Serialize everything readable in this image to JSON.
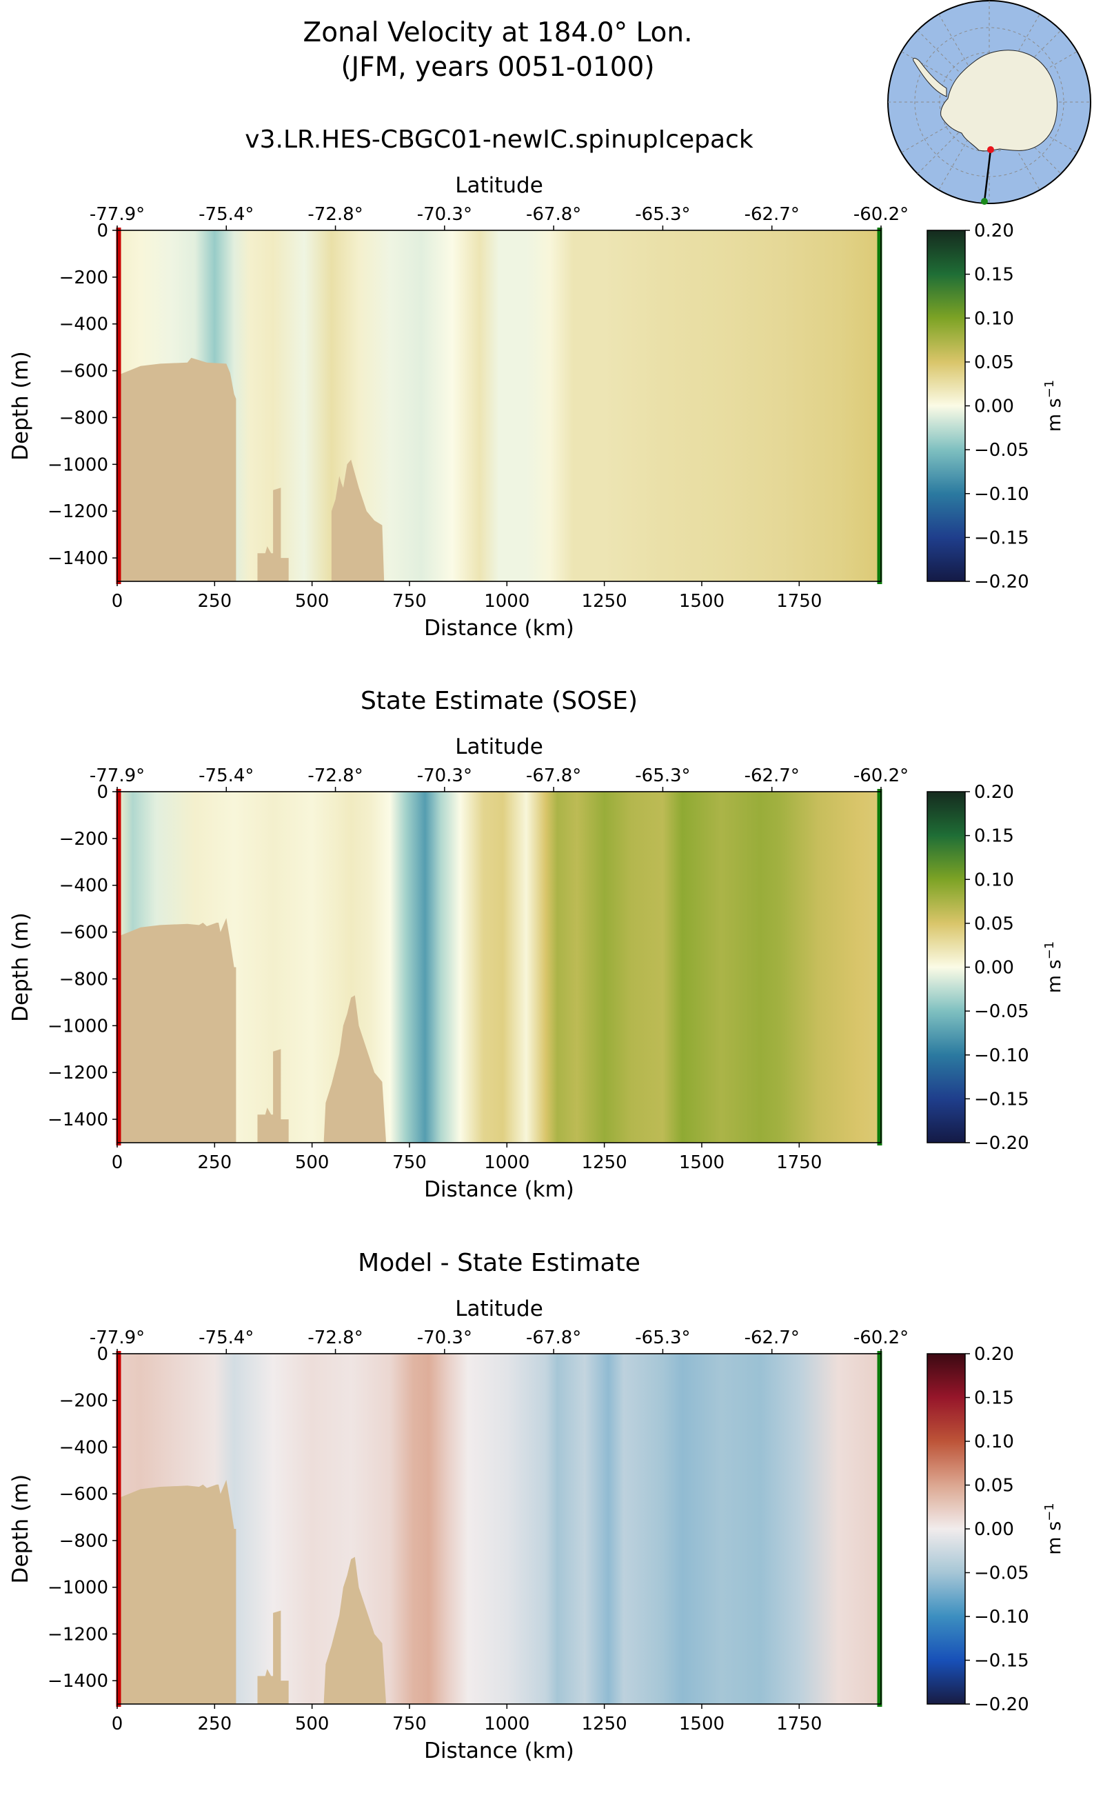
{
  "figure": {
    "title_line1": "Zonal Velocity at 184.0° Lon.",
    "title_line2": "(JFM, years 0051-0100)"
  },
  "inset_map": {
    "description_icon": "antarctica-polar-map-icon",
    "colors": {
      "ocean": "#9cbce6",
      "land": "#f0eedc",
      "section_line": "#000000",
      "start_marker": "#e8141c",
      "end_marker": "#1a8a1a"
    }
  },
  "axes_common": {
    "xlabel": "Distance (km)",
    "ylabel": "Depth (m)",
    "top_xlabel": "Latitude",
    "xlim": [
      0,
      1960
    ],
    "ylim": [
      -1500,
      0
    ],
    "x_ticks": [
      "0",
      "250",
      "500",
      "750",
      "1000",
      "1250",
      "1500",
      "1750"
    ],
    "y_ticks": [
      "0",
      "−200",
      "−400",
      "−600",
      "−800",
      "−1000",
      "−1200",
      "−1400"
    ],
    "lat_ticks": [
      "-77.9°",
      "-75.4°",
      "-72.8°",
      "-70.3°",
      "-67.8°",
      "-65.3°",
      "-62.7°",
      "-60.2°"
    ],
    "colorbar_label": "m s",
    "colorbar_label_sup": "−1",
    "colorbar_ticks": [
      "0.20",
      "0.15",
      "0.10",
      "0.05",
      "0.00",
      "−0.05",
      "−0.10",
      "−0.15",
      "−0.20"
    ],
    "bathymetry_color": "#d4bb93",
    "start_edge_color": "#cc0000",
    "end_edge_color": "#0b7a0b"
  },
  "chart_data": [
    {
      "type": "heatmap",
      "title": "v3.LR.HES-CBGC01-newIC.spinupIcepack",
      "xlabel": "Distance (km)",
      "ylabel": "Depth (m)",
      "xlim": [
        0,
        1960
      ],
      "ylim": [
        -1500,
        0
      ],
      "colorbar": {
        "label": "m s^-1",
        "range": [
          -0.2,
          0.2
        ],
        "colormap": "tarn-like"
      },
      "column_x_km": [
        0,
        60,
        140,
        200,
        250,
        300,
        340,
        400,
        480,
        550,
        620,
        700,
        780,
        860,
        930,
        980,
        1050,
        1110,
        1170,
        1250,
        1400,
        1550,
        1700,
        1850,
        1960
      ],
      "column_values": [
        0.01,
        0.005,
        -0.005,
        -0.01,
        -0.04,
        -0.01,
        0.01,
        0.015,
        -0.005,
        0.025,
        0.01,
        -0.005,
        -0.01,
        0.0,
        0.02,
        -0.005,
        -0.005,
        0.005,
        0.02,
        0.02,
        0.025,
        0.028,
        0.032,
        0.038,
        0.045
      ]
    },
    {
      "type": "heatmap",
      "title": "State Estimate (SOSE)",
      "xlabel": "Distance (km)",
      "ylabel": "Depth (m)",
      "xlim": [
        0,
        1960
      ],
      "ylim": [
        -1500,
        0
      ],
      "colorbar": {
        "label": "m s^-1",
        "range": [
          -0.2,
          0.2
        ],
        "colormap": "tarn-like"
      },
      "column_x_km": [
        0,
        40,
        100,
        200,
        300,
        400,
        500,
        600,
        650,
        700,
        740,
        790,
        830,
        880,
        940,
        990,
        1050,
        1100,
        1130,
        1180,
        1250,
        1320,
        1400,
        1450,
        1550,
        1650,
        1700,
        1800,
        1900,
        1960
      ],
      "column_values": [
        0.01,
        -0.03,
        -0.01,
        0.01,
        0.005,
        0.01,
        0.005,
        0.015,
        0.01,
        0.0,
        -0.035,
        -0.075,
        -0.03,
        0.0,
        0.035,
        0.04,
        0.005,
        0.05,
        0.075,
        0.065,
        0.085,
        0.07,
        0.065,
        0.09,
        0.075,
        0.085,
        0.08,
        0.06,
        0.05,
        0.045
      ]
    },
    {
      "type": "heatmap",
      "title": "Model - State Estimate",
      "xlabel": "Distance (km)",
      "ylabel": "Depth (m)",
      "xlim": [
        0,
        1960
      ],
      "ylim": [
        -1500,
        0
      ],
      "colorbar": {
        "label": "m s^-1",
        "range": [
          -0.2,
          0.2
        ],
        "colormap": "balance"
      },
      "column_x_km": [
        0,
        60,
        150,
        250,
        300,
        400,
        500,
        600,
        700,
        760,
        800,
        850,
        900,
        1000,
        1100,
        1130,
        1200,
        1260,
        1300,
        1400,
        1450,
        1550,
        1650,
        1750,
        1850,
        1960
      ],
      "column_values": [
        0.02,
        0.025,
        0.015,
        0.005,
        -0.02,
        0.0,
        0.01,
        0.005,
        0.015,
        0.04,
        0.045,
        0.02,
        0.0,
        -0.01,
        -0.03,
        -0.05,
        -0.03,
        -0.06,
        -0.035,
        -0.05,
        -0.06,
        -0.05,
        -0.055,
        -0.035,
        0.01,
        0.02
      ]
    }
  ],
  "bathymetry_km_depth": [
    [
      [
        0,
        -1500
      ],
      [
        0,
        -620
      ],
      [
        30,
        -600
      ],
      [
        60,
        -580
      ],
      [
        110,
        -570
      ],
      [
        180,
        -565
      ],
      [
        190,
        -545
      ],
      [
        210,
        -555
      ],
      [
        230,
        -565
      ],
      [
        280,
        -570
      ],
      [
        290,
        -610
      ],
      [
        300,
        -700
      ],
      [
        305,
        -720
      ],
      [
        305,
        -1500
      ]
    ],
    [
      [
        360,
        -1500
      ],
      [
        360,
        -1380
      ],
      [
        380,
        -1380
      ],
      [
        385,
        -1350
      ],
      [
        395,
        -1380
      ],
      [
        400,
        -1380
      ],
      [
        400,
        -1110
      ],
      [
        420,
        -1100
      ],
      [
        420,
        -1400
      ],
      [
        440,
        -1400
      ],
      [
        440,
        -1500
      ]
    ],
    [
      [
        550,
        -1500
      ],
      [
        550,
        -1200
      ],
      [
        560,
        -1150
      ],
      [
        570,
        -1050
      ],
      [
        575,
        -1080
      ],
      [
        580,
        -1100
      ],
      [
        590,
        -1000
      ],
      [
        600,
        -980
      ],
      [
        620,
        -1100
      ],
      [
        640,
        -1200
      ],
      [
        660,
        -1240
      ],
      [
        680,
        -1260
      ],
      [
        685,
        -1500
      ]
    ]
  ],
  "bathymetry_sose_km_depth": [
    [
      [
        0,
        -1500
      ],
      [
        0,
        -620
      ],
      [
        30,
        -600
      ],
      [
        60,
        -580
      ],
      [
        110,
        -570
      ],
      [
        180,
        -565
      ],
      [
        210,
        -570
      ],
      [
        220,
        -560
      ],
      [
        230,
        -575
      ],
      [
        255,
        -560
      ],
      [
        260,
        -560
      ],
      [
        265,
        -600
      ],
      [
        280,
        -540
      ],
      [
        290,
        -640
      ],
      [
        300,
        -750
      ],
      [
        305,
        -750
      ],
      [
        305,
        -1500
      ]
    ],
    [
      [
        360,
        -1500
      ],
      [
        360,
        -1380
      ],
      [
        380,
        -1380
      ],
      [
        385,
        -1350
      ],
      [
        395,
        -1380
      ],
      [
        400,
        -1380
      ],
      [
        400,
        -1110
      ],
      [
        420,
        -1100
      ],
      [
        420,
        -1400
      ],
      [
        440,
        -1400
      ],
      [
        440,
        -1500
      ]
    ],
    [
      [
        530,
        -1500
      ],
      [
        535,
        -1330
      ],
      [
        550,
        -1250
      ],
      [
        570,
        -1120
      ],
      [
        580,
        -1000
      ],
      [
        590,
        -950
      ],
      [
        600,
        -880
      ],
      [
        610,
        -870
      ],
      [
        620,
        -1000
      ],
      [
        640,
        -1100
      ],
      [
        660,
        -1200
      ],
      [
        680,
        -1240
      ],
      [
        690,
        -1500
      ]
    ]
  ]
}
